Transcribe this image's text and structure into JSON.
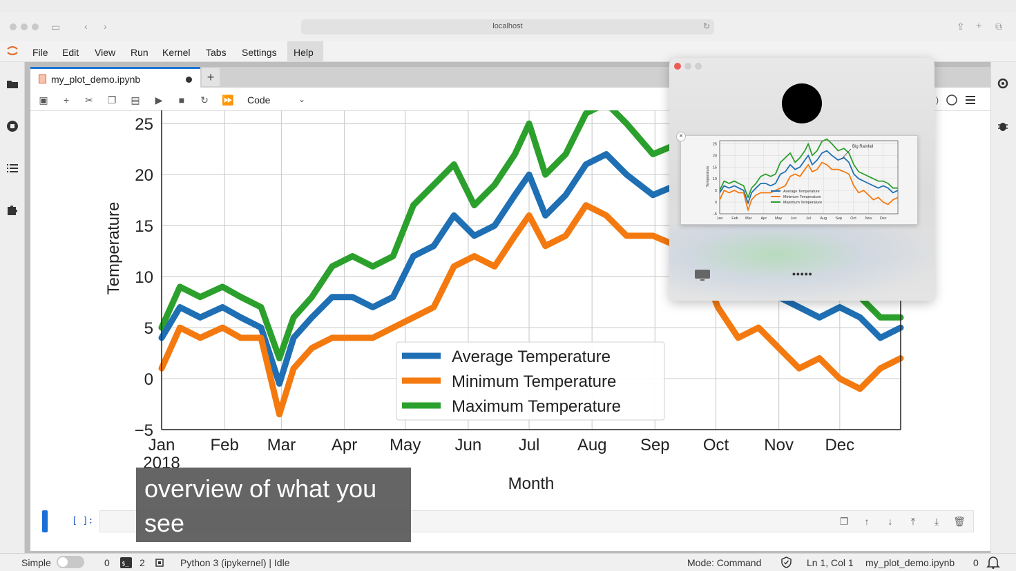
{
  "browser": {
    "url": "localhost"
  },
  "menu": {
    "items": [
      "File",
      "Edit",
      "View",
      "Run",
      "Kernel",
      "Tabs",
      "Settings",
      "Help"
    ]
  },
  "tab": {
    "filename": "my_plot_demo.ipynb",
    "new_tab": "+"
  },
  "toolbar": {
    "cell_type": "Code"
  },
  "cell": {
    "prompt": "[ ]:"
  },
  "caption": {
    "text": "overview of what you see"
  },
  "pip": {
    "annotation": "Big Rainfall",
    "dots": "•••••"
  },
  "statusbar": {
    "mode_label": "Simple",
    "terminals": "0",
    "kernels": "2",
    "kernel": "Python 3 (ipykernel) | Idle",
    "mode": "Mode: Command",
    "position": "Ln 1, Col 1",
    "file": "my_plot_demo.ipynb",
    "notifications": "0"
  },
  "colors": {
    "avg": "#1f6fb4",
    "min": "#f47a10",
    "max": "#2ca02c",
    "accent": "#1a74d4"
  },
  "chart_data": {
    "type": "line",
    "xlabel": "Month",
    "ylabel": "Temperature",
    "x_ticks": [
      "Jan\n2018",
      "Feb",
      "Mar",
      "Apr",
      "May",
      "Jun",
      "Jul",
      "Aug",
      "Sep",
      "Oct",
      "Nov",
      "Dec"
    ],
    "y_ticks": [
      "−5",
      "0",
      "5",
      "10",
      "15",
      "20",
      "25"
    ],
    "ylim": [
      -5,
      30
    ],
    "xlim": [
      1,
      365
    ],
    "grid": true,
    "legend_position": "lower-center",
    "x_day": [
      1,
      10,
      20,
      31,
      40,
      50,
      59,
      66,
      75,
      85,
      95,
      105,
      115,
      125,
      135,
      145,
      155,
      165,
      175,
      182,
      190,
      200,
      210,
      220,
      230,
      243,
      255,
      265,
      275,
      285,
      295,
      305,
      315,
      325,
      335,
      345,
      355,
      365
    ],
    "series": [
      {
        "name": "Average Temperature",
        "values": [
          4,
          7,
          6,
          7,
          6,
          5,
          -0.5,
          4,
          6,
          8,
          8,
          7,
          8,
          12,
          13,
          16,
          14,
          15,
          18,
          20,
          16,
          18,
          21,
          22,
          20,
          18,
          19,
          17,
          12,
          10,
          9,
          8,
          7,
          6,
          7,
          6,
          4,
          5
        ]
      },
      {
        "name": "Minimum Temperature",
        "values": [
          1,
          5,
          4,
          5,
          4,
          4,
          -3.5,
          1,
          3,
          4,
          4,
          4,
          5,
          6,
          7,
          11,
          12,
          11,
          14,
          16,
          13,
          14,
          17,
          16,
          14,
          14,
          13,
          12,
          7,
          4,
          5,
          3,
          1,
          2,
          0,
          -1,
          1,
          2
        ]
      },
      {
        "name": "Maximum Temperature",
        "values": [
          5,
          9,
          8,
          9,
          8,
          7,
          2,
          6,
          8,
          11,
          12,
          11,
          12,
          17,
          19,
          21,
          17,
          19,
          22,
          25,
          20,
          22,
          26,
          27,
          25,
          22,
          23,
          21,
          16,
          13,
          12,
          11,
          10,
          9,
          9,
          8,
          6,
          6
        ]
      }
    ]
  }
}
